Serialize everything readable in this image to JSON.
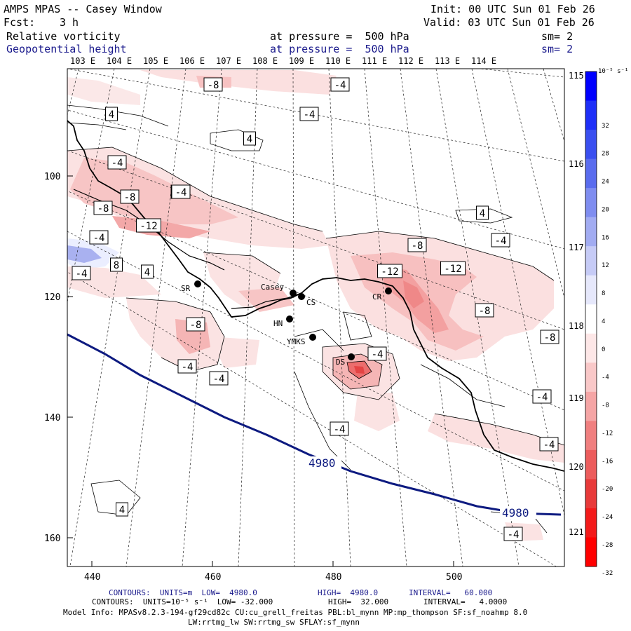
{
  "header": {
    "title": "AMPS MPAS -- Casey Window",
    "fcst_label": "Fcst:",
    "fcst_value": "3 h",
    "init": "Init: 00 UTC Sun 01 Feb 26",
    "valid": "Valid: 03 UTC Sun 01 Feb 26",
    "field1": {
      "name": "Relative vorticity",
      "level": "at pressure =  500 hPa",
      "smooth": "sm= 2"
    },
    "field2": {
      "name": "Geopotential height",
      "level": "at pressure =  500 hPa",
      "smooth": "sm= 2"
    }
  },
  "map": {
    "lon_labels_top": [
      "103 E",
      "104 E",
      "105 E",
      "106 E",
      "107 E",
      "108 E",
      "109 E",
      "110 E",
      "111 E",
      "112 E",
      "113 E",
      "114 E"
    ],
    "lat_labels_right": [
      "115 E",
      "116 E",
      "117 E",
      "118 E",
      "119 E",
      "120 E",
      "121 E"
    ],
    "x_ticks": [
      "440",
      "460",
      "480",
      "500"
    ],
    "y_ticks": [
      "100",
      "120",
      "140",
      "160"
    ],
    "stations": [
      {
        "name": "SR"
      },
      {
        "name": "Casey"
      },
      {
        "name": "CS"
      },
      {
        "name": "HN"
      },
      {
        "name": "YMKS"
      },
      {
        "name": "DS"
      },
      {
        "name": "CR"
      }
    ],
    "vorticity_labels": [
      "-8",
      "-4",
      "4",
      "-4",
      "4",
      "-4",
      "-4",
      "-8",
      "-8",
      "-12",
      "-4",
      "8",
      "-4",
      "4",
      "-8",
      "-4",
      "-4",
      "4",
      "-8",
      "-4",
      "-12",
      "-12",
      "-8",
      "-8",
      "-4",
      "-4",
      "-4",
      "-4",
      "4",
      "-4",
      "-4"
    ],
    "height_contour_value": "4980",
    "colors": {
      "height_contour": "#0d1a80",
      "coast": "#000000"
    }
  },
  "colorbar": {
    "unit": "10⁻⁵ s⁻¹",
    "labels": [
      "32",
      "28",
      "24",
      "20",
      "16",
      "12",
      "8",
      "4",
      "0",
      "-4",
      "-8",
      "-12",
      "-16",
      "-20",
      "-24",
      "-28",
      "-32"
    ],
    "colors": [
      "#0000ff",
      "#1e2ff8",
      "#3a4ff0",
      "#5a6cee",
      "#7f8df0",
      "#a2acf2",
      "#c6cbf6",
      "#e6e8fb",
      "#ffffff",
      "#fde7e7",
      "#f9c8c8",
      "#f5a5a5",
      "#f07f7f",
      "#ec5c5c",
      "#e83a3a",
      "#f31a1a",
      "#ff0000"
    ]
  },
  "footer": {
    "line1_label": "CONTOURS:  UNITS=m  LOW=  4980.0",
    "line1_high": "HIGH=  4980.0",
    "line1_interval": "INTERVAL=   60.000",
    "line2_label": "CONTOURS:  UNITS=10⁻⁵ s⁻¹  LOW= -32.000",
    "line2_high": "HIGH=  32.000",
    "line2_interval": "INTERVAL=   4.0000",
    "model_info": "Model Info: MPASv8.2.3-194-gf29cd82c CU:cu_grell_freitas PBL:bl_mynn MP:mp_thompson SF:sf_noahmp 8.0",
    "model_info2": "LW:rrtmg_lw SW:rrtmg_sw SFLAY:sf_mynn"
  }
}
